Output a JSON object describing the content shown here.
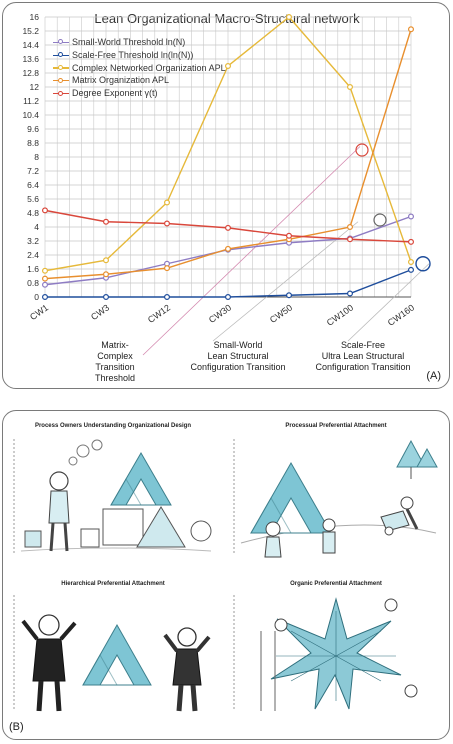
{
  "panel_a": {
    "label": "(A)",
    "annotations": {
      "matrix_transition": "Matrix-\nComplex\nTransition\nThreshold",
      "small_world_transition": "Small-World\nLean Structural\nConfiguration Transition",
      "scale_free_transition": "Scale-Free\nUltra Lean Structural\nConfiguration Transition"
    }
  },
  "panel_b": {
    "label": "(B)",
    "sketches": [
      {
        "title": "Process Owners Understanding Organizational Design",
        "icon": "figure-thinking-with-triangles"
      },
      {
        "title": "Processual Preferential Attachment",
        "icon": "figures-working-outdoors"
      },
      {
        "title": "Hierarchical Preferential Attachment",
        "icon": "businessmen-with-triangle"
      },
      {
        "title": "Organic Preferential Attachment",
        "icon": "figures-building-star-network"
      }
    ]
  },
  "colors": {
    "small_world": "#8e7cc3",
    "scale_free": "#1f4e9c",
    "complex_apl": "#e6b93a",
    "matrix_apl": "#e88f2e",
    "degree_exponent": "#d9473b",
    "grid": "#c8c8c8"
  },
  "chart_data": {
    "type": "line",
    "title": "Lean Organizational Macro-Structural network",
    "xlabel": "",
    "ylabel": "",
    "categories": [
      "CW1",
      "CW3",
      "CW12",
      "CW30",
      "CW50",
      "CW100",
      "CW160"
    ],
    "y_ticks": [
      "0",
      "0.8",
      "1.6",
      "2.4",
      "3.2",
      "4",
      "4.8",
      "5.6",
      "6.4",
      "7.2",
      "8",
      "8.8",
      "9.6",
      "10.4",
      "11.2",
      "12",
      "12.8",
      "13.6",
      "14.4",
      "15.2",
      "16"
    ],
    "ylim": [
      0,
      16
    ],
    "grid": true,
    "legend_position": "top-left",
    "series": [
      {
        "name": "Small-World Threshold ln(N)",
        "color_key": "small_world",
        "values": [
          0.7,
          1.1,
          1.9,
          2.7,
          3.1,
          3.35,
          4.6
        ]
      },
      {
        "name": "Scale-Free Threshold ln(ln(N))",
        "color_key": "scale_free",
        "values": [
          0.0,
          0.0,
          0.0,
          0.0,
          0.1,
          0.2,
          1.55
        ]
      },
      {
        "name": "Complex Networked Organization APL",
        "color_key": "complex_apl",
        "values": [
          1.5,
          2.1,
          5.4,
          13.2,
          16.0,
          12.0,
          2.0
        ]
      },
      {
        "name": "Matrix Organization APL",
        "color_key": "matrix_apl",
        "values": [
          1.05,
          1.3,
          1.65,
          2.75,
          3.3,
          4.0,
          15.3
        ]
      },
      {
        "name": "Degree Exponent γ(t)",
        "color_key": "degree_exponent",
        "values": [
          4.95,
          4.3,
          4.2,
          3.95,
          3.5,
          3.3,
          3.15
        ]
      }
    ]
  }
}
